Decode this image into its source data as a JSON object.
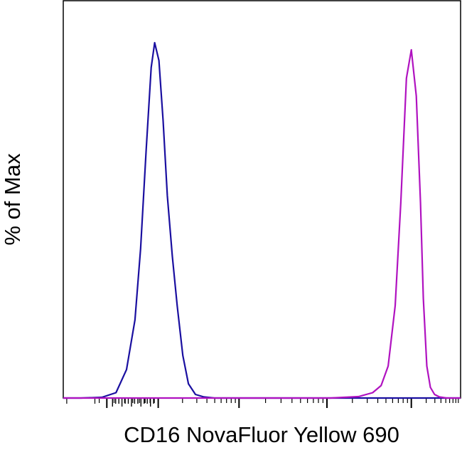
{
  "chart_data": {
    "type": "line",
    "title": "",
    "xlabel": "CD16 NovaFluor Yellow 690",
    "ylabel": "% of Max",
    "x_scale": "log",
    "ylim": [
      0,
      100
    ],
    "grid": false,
    "legend": "none",
    "series": [
      {
        "color": "#1a0fa0",
        "x": [
          0.0,
          0.25,
          0.55,
          0.75,
          0.9,
          1.02,
          1.1,
          1.18,
          1.25,
          1.3,
          1.36,
          1.42,
          1.48,
          1.55,
          1.62,
          1.7,
          1.78,
          1.88,
          2.0,
          2.15,
          2.4,
          3.0,
          5.0,
          5.65
        ],
        "y": [
          0,
          0,
          0.2,
          1.5,
          8,
          22,
          42,
          70,
          93,
          100,
          95,
          78,
          57,
          40,
          26,
          12,
          4,
          1,
          0.3,
          0,
          0,
          0,
          0,
          0
        ]
      },
      {
        "color": "#b012c0",
        "x": [
          0.0,
          2.5,
          3.8,
          4.2,
          4.4,
          4.52,
          4.62,
          4.72,
          4.8,
          4.88,
          4.95,
          5.02,
          5.08,
          5.12,
          5.17,
          5.22,
          5.28,
          5.35,
          5.45,
          5.65
        ],
        "y": [
          0,
          0,
          0,
          0.4,
          1.5,
          3.5,
          9,
          26,
          55,
          90,
          98,
          85,
          55,
          28,
          9,
          3,
          1,
          0.3,
          0,
          0
        ]
      }
    ]
  }
}
